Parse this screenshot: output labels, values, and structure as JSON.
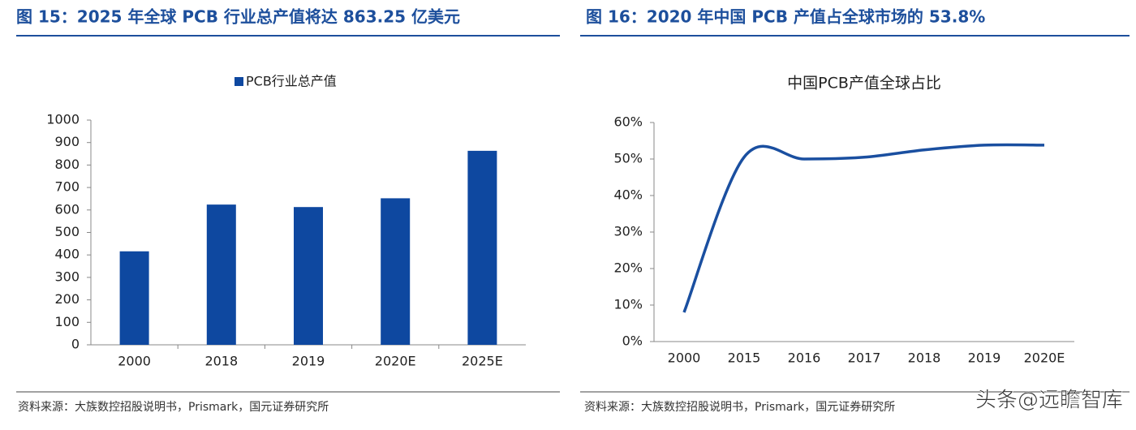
{
  "chart_data": [
    {
      "type": "bar",
      "title": "图 15：2025 年全球 PCB 行业总产值将达 863.25 亿美元",
      "categories": [
        "2000",
        "2018",
        "2019",
        "2020E",
        "2025E"
      ],
      "series": [
        {
          "name": "PCB行业总产值",
          "color": "#0e48a0",
          "values": [
            416,
            624,
            613,
            652,
            863.25
          ]
        }
      ],
      "ylim": [
        0,
        1000
      ],
      "yticks": [
        0,
        100,
        200,
        300,
        400,
        500,
        600,
        700,
        800,
        900,
        1000
      ],
      "source": "资料来源：大族数控招股说明书，Prismark，国元证券研究所"
    },
    {
      "type": "line",
      "title": "图 16：2020 年中国 PCB 产值占全球市场的 53.8%",
      "subtitle": "中国PCB产值全球占比",
      "categories": [
        "2000",
        "2015",
        "2016",
        "2017",
        "2018",
        "2019",
        "2020E"
      ],
      "series": [
        {
          "name": "中国PCB产值全球占比",
          "color": "#1a4fa0",
          "values": [
            8,
            50.5,
            50,
            50.5,
            52.5,
            53.8,
            53.8
          ]
        }
      ],
      "ylim": [
        0,
        60
      ],
      "yticks": [
        {
          "value": 0,
          "label": "0%"
        },
        {
          "value": 10,
          "label": "10%"
        },
        {
          "value": 20,
          "label": "20%"
        },
        {
          "value": 30,
          "label": "30%"
        },
        {
          "value": 40,
          "label": "40%"
        },
        {
          "value": 50,
          "label": "50%"
        },
        {
          "value": 60,
          "label": "60%"
        }
      ],
      "source": "资料来源：大族数控招股说明书，Prismark，国元证券研究所"
    }
  ],
  "watermark": "头条@远瞻智库"
}
